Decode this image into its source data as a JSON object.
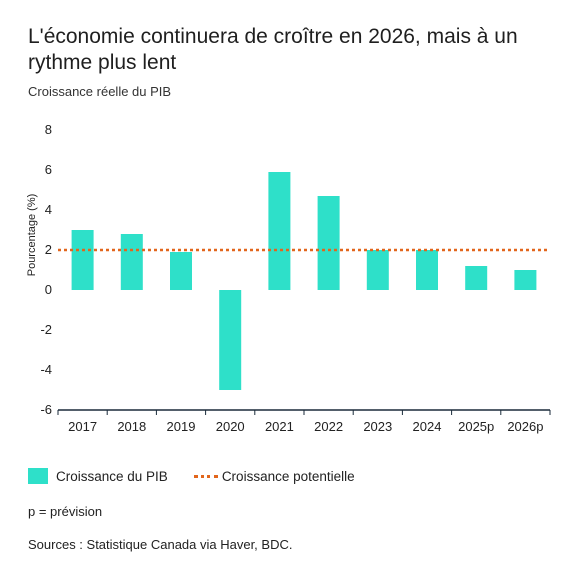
{
  "title": "L'économie continuera de croître en 2026, mais à un rythme plus lent",
  "subtitle": "Croissance réelle du PIB",
  "footnote": "p = prévision",
  "source": "Sources : Statistique Canada via Haver, BDC.",
  "colors": {
    "bar": "#2ee0c9",
    "reference_line": "#e2661c",
    "axis": "#1a2a3a"
  },
  "chart_data": {
    "type": "bar",
    "categories": [
      "2017",
      "2018",
      "2019",
      "2020",
      "2021",
      "2022",
      "2023",
      "2024",
      "2025p",
      "2026p"
    ],
    "series": [
      {
        "name": "Croissance du PIB",
        "values": [
          3.0,
          2.8,
          1.9,
          -5.0,
          5.9,
          4.7,
          2.0,
          2.0,
          1.2,
          1.0
        ]
      }
    ],
    "reference_line": {
      "name": "Croissance potentielle",
      "value": 2.0
    },
    "ylabel": "Pourcentage (%)",
    "ylim": [
      -6,
      8
    ],
    "yticks": [
      "8",
      "6",
      "4",
      "2",
      "0",
      "-2",
      "-4",
      "-6"
    ],
    "grid": false,
    "legend_position": "bottom"
  }
}
